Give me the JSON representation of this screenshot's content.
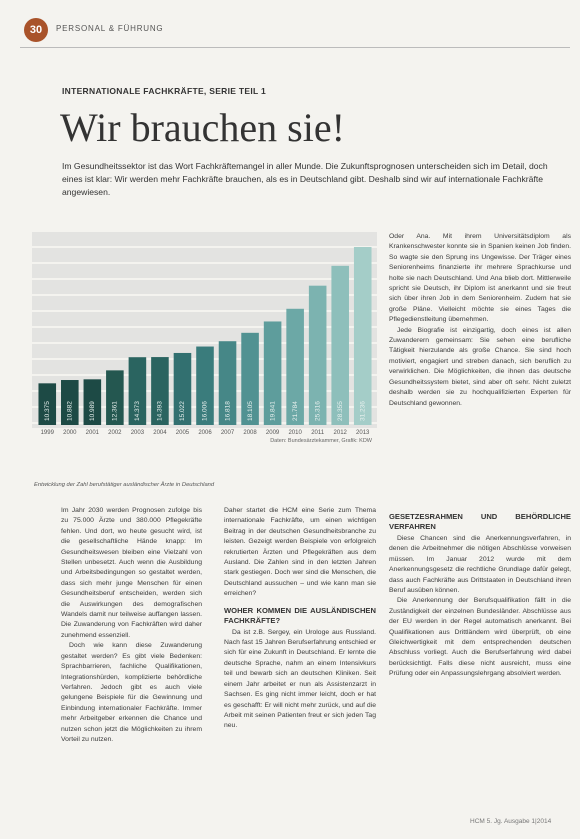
{
  "header": {
    "page_number": "30",
    "section": "PERSONAL & FÜHRUNG"
  },
  "kicker": "INTERNATIONALE FACHKRÄFTE, SERIE TEIL 1",
  "title": "Wir brauchen sie!",
  "lead": "Im Gesundheitssektor ist das Wort Fachkräftemangel in aller Munde. Die Zukunftsprognosen unterscheiden sich im Detail, doch eines ist klar: Wir werden mehr Fachkräfte brauchen, als es in Deutschland gibt. Deshalb sind wir auf internationale Fachkräfte angewiesen.",
  "chart_data": {
    "type": "bar",
    "categories": [
      "1999",
      "2000",
      "2001",
      "2002",
      "2003",
      "2004",
      "2005",
      "2006",
      "2007",
      "2008",
      "2009",
      "2010",
      "2011",
      "2012",
      "2013"
    ],
    "values": [
      10375,
      10882,
      10989,
      12361,
      14373,
      14393,
      15022,
      16006,
      16818,
      18105,
      19841,
      21784,
      25316,
      28355,
      31236
    ],
    "value_labels": [
      "10.375",
      "10.882",
      "10.989",
      "12.361",
      "14.373",
      "14.393",
      "15.022",
      "16.006",
      "16.818",
      "18.105",
      "19.841",
      "21.784",
      "25.316",
      "28.355",
      "31.236"
    ],
    "colors": [
      "#1d4a45",
      "#1d4a45",
      "#1d4a45",
      "#245750",
      "#2a6460",
      "#2a6460",
      "#327070",
      "#3a7c7c",
      "#468787",
      "#519292",
      "#5e9d9c",
      "#6ca8a6",
      "#7cb3b0",
      "#8ebfbb",
      "#a4cdc8"
    ],
    "ylim": [
      4000,
      32000
    ],
    "source": "Daten: Bundesärztekammer, Grafik: KDW"
  },
  "caption": "Entwicklung der Zahl berufstätiger ausländischer Ärzte in Deutschland",
  "side_column": [
    {
      "text": "Oder Ana. Mit ihrem Universitätsdiplom als Krankenschwester konnte sie in Spanien keinen Job finden. So wagte sie den Sprung ins Ungewisse. Der Träger eines Seniorenheims finanzierte ihr mehrere Sprachkurse und holte sie nach Deutschland. Und Ana blieb dort. Mittlerweile spricht sie Deutsch, ihr Diplom ist anerkannt und sie freut sich über ihren Job in dem Seniorenheim. Zudem hat sie große Pläne. Vielleicht möchte sie eines Tages die Pflegedienstleitung übernehmen."
    },
    {
      "text": "Jede Biografie ist einzigartig, doch eines ist allen Zuwanderern gemeinsam: Sie sehen eine berufliche Tätigkeit hierzulande als große Chance. Sie sind hoch motiviert, engagiert und streben danach, sich beruflich zu verwirklichen. Die Möglichkeiten, die ihnen das deutsche Gesundheitssystem bietet, sind aber oft sehr. Nicht zuletzt deshalb werden sie zu hochqualifizierten Experten für Deutschland gewonnen."
    }
  ],
  "columns": [
    [
      {
        "text": "Im Jahr 2030 werden Prognosen zufolge bis zu 75.000 Ärzte und 380.000 Pflegekräfte fehlen. Und dort, wo heute gesucht wird, ist die gesellschaftliche Hände knapp: Im Gesundheitswesen bleiben eine Vielzahl von Stellen unbesetzt. Auch wenn die Ausbildung und Arbeitsbedingungen so gestaltet werden, dass sich mehr junge Menschen für einen Gesundheitsberuf entscheiden, werden sich die Auswirkungen des demografischen Wandels damit nur teilweise auffangen lassen. Die Zuwanderung von Fachkräften wird daher zunehmend essenziell."
      },
      {
        "text": "Doch wie kann diese Zuwanderung gestaltet werden? Es gibt viele Bedenken: Sprachbarrieren, fachliche Qualifikationen, Integrationshürden, komplizierte behördliche Verfahren. Jedoch gibt es auch viele gelungene Beispiele für die Gewinnung und Einbindung internationaler Fachkräfte. Immer mehr Arbeitgeber erkennen die Chance und nutzen schon jetzt die Möglichkeiten zu ihrem Vorteil zu nutzen."
      }
    ],
    [
      {
        "text": "Daher startet die HCM eine Serie zum Thema internationale Fachkräfte, um einen wichtigen Beitrag in der deutschen Gesundheitsbranche zu leisten. Gezeigt werden Beispiele von erfolgreich rekrutierten Ärzten und Pflegekräften aus dem Ausland. Die Zahlen sind in den letzten Jahren stark gestiegen. Doch wer sind die Menschen, die Deutschland aussuchen – und wie kann man sie erreichen?"
      },
      {
        "heading": "WOHER KOMMEN DIE AUSLÄNDISCHEN FACHKRÄFTE?"
      },
      {
        "text": "Da ist z.B. Sergey, ein Urologe aus Russland. Nach fast 15 Jahren Berufserfahrung entschied er sich für eine Zukunft in Deutschland. Er lernte die deutsche Sprache, nahm an einem Intensivkurs teil und bewarb sich an deutschen Kliniken. Seit einem Jahr arbeitet er nun als Assistenzarzt in Sachsen. Es ging nicht immer leicht, doch er hat es geschafft: Er will nicht mehr zurück, und auf die Arbeit mit seinen Patienten freut er sich jeden Tag neu."
      }
    ],
    [
      {
        "heading": "GESETZESRAHMEN UND BEHÖRDLICHE VERFAHREN"
      },
      {
        "text": "Diese Chancen sind die Anerkennungsverfahren, in denen die Arbeitnehmer die nötigen Abschlüsse vorweisen müssen. Im Januar 2012 wurde mit dem Anerkennungsgesetz die rechtliche Grundlage dafür gelegt, dass auch Fachkräfte aus Drittstaaten in Deutschland ihren Beruf ausüben können."
      },
      {
        "text": "Die Anerkennung der Berufsqualifikation fällt in die Zuständigkeit der einzelnen Bundesländer. Abschlüsse aus der EU werden in der Regel automatisch anerkannt. Bei Qualifikationen aus Drittländern wird überprüft, ob eine Gleichwertigkeit mit dem entsprechenden deutschen Abschluss vorliegt. Auch die Berufserfahrung wird dabei berücksichtigt. Falls diese nicht ausreicht, muss eine Prüfung oder ein Anpassungslehrgang absolviert werden."
      }
    ]
  ],
  "footer": "HCM 5. Jg. Ausgabe 1|2014"
}
